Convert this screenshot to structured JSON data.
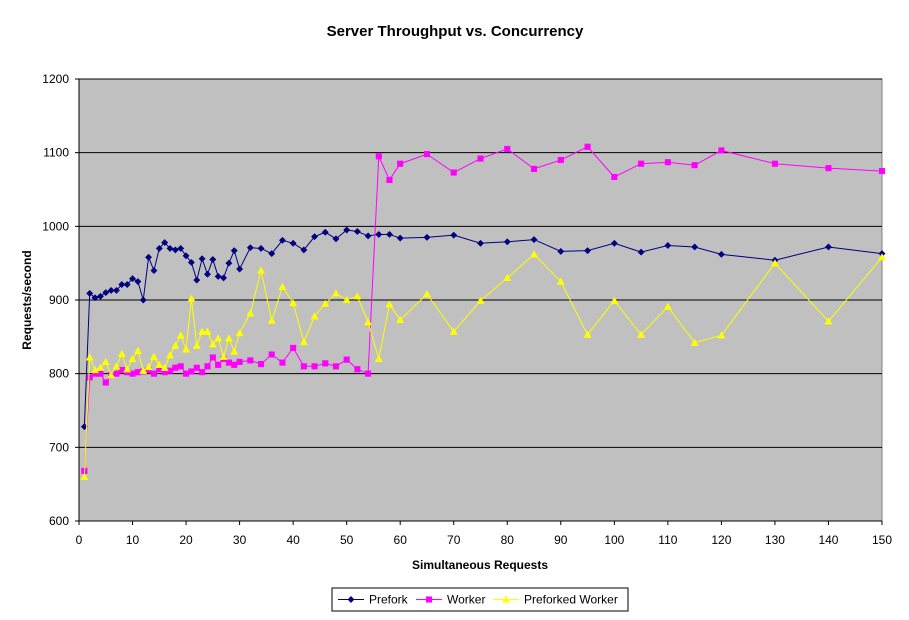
{
  "chart_data": {
    "type": "line",
    "title": "Server Throughput vs. Concurrency",
    "xlabel": "Simultaneous Requests",
    "ylabel": "Requests/second",
    "xlim": [
      0,
      150
    ],
    "ylim": [
      600,
      1200
    ],
    "xticks": [
      0,
      10,
      20,
      30,
      40,
      50,
      60,
      70,
      80,
      90,
      100,
      110,
      120,
      130,
      140,
      150
    ],
    "yticks": [
      600,
      700,
      800,
      900,
      1000,
      1100,
      1200
    ],
    "grid": "horizontal",
    "plot_background": "#C0C0C0",
    "legend_position": "bottom",
    "series": [
      {
        "name": "Prefork",
        "color": "#000080",
        "marker": "diamond",
        "points": [
          [
            1,
            728
          ],
          [
            2,
            909
          ],
          [
            3,
            903
          ],
          [
            4,
            905
          ],
          [
            5,
            910
          ],
          [
            6,
            913
          ],
          [
            7,
            913
          ],
          [
            8,
            921
          ],
          [
            9,
            921
          ],
          [
            10,
            929
          ],
          [
            11,
            925
          ],
          [
            12,
            900
          ],
          [
            13,
            958
          ],
          [
            14,
            940
          ],
          [
            15,
            970
          ],
          [
            16,
            978
          ],
          [
            17,
            970
          ],
          [
            18,
            968
          ],
          [
            19,
            970
          ],
          [
            20,
            960
          ],
          [
            21,
            951
          ],
          [
            22,
            927
          ],
          [
            23,
            956
          ],
          [
            24,
            935
          ],
          [
            25,
            955
          ],
          [
            26,
            932
          ],
          [
            27,
            930
          ],
          [
            28,
            950
          ],
          [
            29,
            967
          ],
          [
            30,
            942
          ],
          [
            32,
            971
          ],
          [
            34,
            970
          ],
          [
            36,
            963
          ],
          [
            38,
            981
          ],
          [
            40,
            977
          ],
          [
            42,
            968
          ],
          [
            44,
            986
          ],
          [
            46,
            992
          ],
          [
            48,
            983
          ],
          [
            50,
            995
          ],
          [
            52,
            993
          ],
          [
            54,
            987
          ],
          [
            56,
            989
          ],
          [
            58,
            989
          ],
          [
            60,
            984
          ],
          [
            65,
            985
          ],
          [
            70,
            988
          ],
          [
            75,
            977
          ],
          [
            80,
            979
          ],
          [
            85,
            982
          ],
          [
            90,
            966
          ],
          [
            95,
            967
          ],
          [
            100,
            977
          ],
          [
            105,
            965
          ],
          [
            110,
            974
          ],
          [
            115,
            972
          ],
          [
            120,
            962
          ],
          [
            130,
            954
          ],
          [
            140,
            972
          ],
          [
            150,
            963
          ]
        ]
      },
      {
        "name": "Worker",
        "color": "#FF00FF",
        "marker": "square",
        "points": [
          [
            1,
            668
          ],
          [
            2,
            795
          ],
          [
            3,
            800
          ],
          [
            4,
            800
          ],
          [
            5,
            788
          ],
          [
            6,
            798
          ],
          [
            7,
            800
          ],
          [
            8,
            805
          ],
          [
            9,
            802
          ],
          [
            10,
            800
          ],
          [
            11,
            802
          ],
          [
            12,
            803
          ],
          [
            13,
            805
          ],
          [
            14,
            800
          ],
          [
            15,
            806
          ],
          [
            16,
            802
          ],
          [
            17,
            804
          ],
          [
            18,
            808
          ],
          [
            19,
            810
          ],
          [
            20,
            800
          ],
          [
            21,
            803
          ],
          [
            22,
            808
          ],
          [
            23,
            802
          ],
          [
            24,
            810
          ],
          [
            25,
            822
          ],
          [
            26,
            812
          ],
          [
            27,
            820
          ],
          [
            28,
            815
          ],
          [
            29,
            812
          ],
          [
            30,
            816
          ],
          [
            32,
            818
          ],
          [
            34,
            813
          ],
          [
            36,
            826
          ],
          [
            38,
            815
          ],
          [
            40,
            835
          ],
          [
            42,
            810
          ],
          [
            44,
            810
          ],
          [
            46,
            814
          ],
          [
            48,
            810
          ],
          [
            50,
            819
          ],
          [
            52,
            806
          ],
          [
            54,
            800
          ],
          [
            56,
            1095
          ],
          [
            58,
            1063
          ],
          [
            60,
            1085
          ],
          [
            65,
            1098
          ],
          [
            70,
            1073
          ],
          [
            75,
            1092
          ],
          [
            80,
            1105
          ],
          [
            85,
            1078
          ],
          [
            90,
            1090
          ],
          [
            95,
            1108
          ],
          [
            100,
            1067
          ],
          [
            105,
            1085
          ],
          [
            110,
            1087
          ],
          [
            115,
            1083
          ],
          [
            120,
            1103
          ],
          [
            130,
            1085
          ],
          [
            140,
            1079
          ],
          [
            150,
            1075
          ]
        ]
      },
      {
        "name": "Preforked Worker",
        "color": "#FFFF00",
        "marker": "triangle",
        "points": [
          [
            1,
            660
          ],
          [
            2,
            822
          ],
          [
            3,
            805
          ],
          [
            4,
            808
          ],
          [
            5,
            816
          ],
          [
            6,
            798
          ],
          [
            7,
            810
          ],
          [
            8,
            827
          ],
          [
            9,
            806
          ],
          [
            10,
            820
          ],
          [
            11,
            831
          ],
          [
            12,
            804
          ],
          [
            13,
            809
          ],
          [
            14,
            823
          ],
          [
            15,
            812
          ],
          [
            16,
            808
          ],
          [
            17,
            825
          ],
          [
            18,
            838
          ],
          [
            19,
            852
          ],
          [
            20,
            833
          ],
          [
            21,
            902
          ],
          [
            22,
            838
          ],
          [
            23,
            857
          ],
          [
            24,
            857
          ],
          [
            25,
            840
          ],
          [
            26,
            848
          ],
          [
            27,
            823
          ],
          [
            28,
            848
          ],
          [
            29,
            830
          ],
          [
            30,
            855
          ],
          [
            32,
            882
          ],
          [
            34,
            940
          ],
          [
            36,
            872
          ],
          [
            38,
            918
          ],
          [
            40,
            896
          ],
          [
            42,
            843
          ],
          [
            44,
            878
          ],
          [
            46,
            895
          ],
          [
            48,
            909
          ],
          [
            50,
            900
          ],
          [
            52,
            905
          ],
          [
            54,
            870
          ],
          [
            56,
            820
          ],
          [
            58,
            894
          ],
          [
            60,
            873
          ],
          [
            65,
            908
          ],
          [
            70,
            857
          ],
          [
            75,
            899
          ],
          [
            80,
            930
          ],
          [
            85,
            962
          ],
          [
            90,
            925
          ],
          [
            95,
            853
          ],
          [
            100,
            899
          ],
          [
            105,
            853
          ],
          [
            110,
            891
          ],
          [
            115,
            842
          ],
          [
            120,
            852
          ],
          [
            130,
            950
          ],
          [
            140,
            871
          ],
          [
            150,
            958
          ]
        ]
      }
    ]
  }
}
